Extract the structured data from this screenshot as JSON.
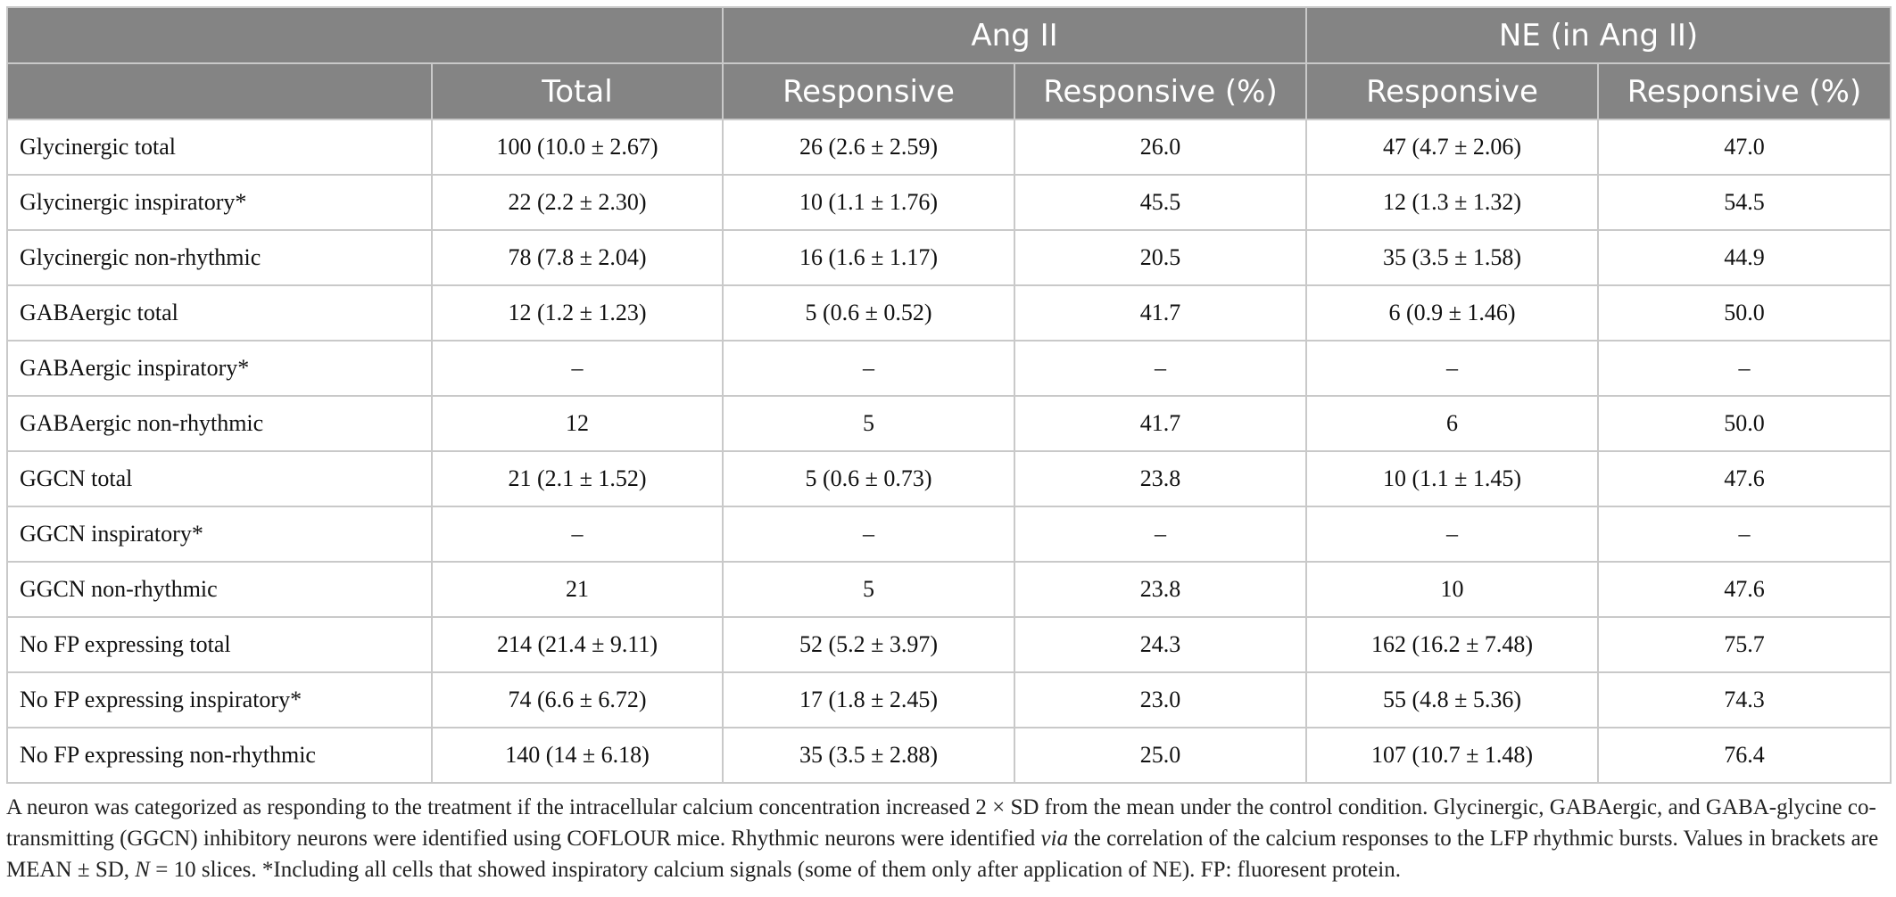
{
  "table": {
    "group_headers": [
      "",
      "Ang II",
      "NE (in Ang II)"
    ],
    "column_headers": [
      "",
      "Total",
      "Responsive",
      "Responsive (%)",
      "Responsive",
      "Responsive (%)"
    ],
    "rows": [
      [
        "Glycinergic total",
        "100 (10.0 ± 2.67)",
        "26 (2.6 ± 2.59)",
        "26.0",
        "47 (4.7 ± 2.06)",
        "47.0"
      ],
      [
        "Glycinergic inspiratory*",
        "22 (2.2 ± 2.30)",
        "10 (1.1 ± 1.76)",
        "45.5",
        "12 (1.3 ± 1.32)",
        "54.5"
      ],
      [
        "Glycinergic non-rhythmic",
        "78 (7.8 ± 2.04)",
        "16 (1.6 ± 1.17)",
        "20.5",
        "35 (3.5 ± 1.58)",
        "44.9"
      ],
      [
        "GABAergic total",
        "12 (1.2 ± 1.23)",
        "5 (0.6 ± 0.52)",
        "41.7",
        "6 (0.9 ± 1.46)",
        "50.0"
      ],
      [
        "GABAergic inspiratory*",
        "–",
        "–",
        "–",
        "–",
        "–"
      ],
      [
        "GABAergic non-rhythmic",
        "12",
        "5",
        "41.7",
        "6",
        "50.0"
      ],
      [
        "GGCN total",
        "21 (2.1 ± 1.52)",
        "5 (0.6 ± 0.73)",
        "23.8",
        "10 (1.1 ± 1.45)",
        "47.6"
      ],
      [
        "GGCN inspiratory*",
        "–",
        "–",
        "–",
        "–",
        "–"
      ],
      [
        "GGCN non-rhythmic",
        "21",
        "5",
        "23.8",
        "10",
        "47.6"
      ],
      [
        "No FP expressing total",
        "214 (21.4 ± 9.11)",
        "52 (5.2 ± 3.97)",
        "24.3",
        "162 (16.2 ± 7.48)",
        "75.7"
      ],
      [
        "No FP expressing inspiratory*",
        "74 (6.6 ± 6.72)",
        "17 (1.8 ± 2.45)",
        "23.0",
        "55 (4.8 ± 5.36)",
        "74.3"
      ],
      [
        "No FP expressing non-rhythmic",
        "140 (14 ± 6.18)",
        "35 (3.5 ± 2.88)",
        "25.0",
        "107 (10.7 ± 1.48)",
        "76.4"
      ]
    ]
  },
  "footnote": {
    "part1": "A neuron was categorized as responding to the treatment if the intracellular calcium concentration increased 2 × SD from the mean under the control condition. Glycinergic, GABAergic, and GABA-glycine co-transmitting (GGCN) inhibitory neurons were identified using COFLOUR mice. Rhythmic neurons were identified ",
    "via": "via",
    "part2": " the correlation of the calcium responses to the LFP rhythmic bursts. Values in brackets are MEAN ± SD, ",
    "n_symbol": "N",
    "part3": " = 10 slices. *Including all cells that showed inspiratory calcium signals (some of them only after application of NE). FP: fluoresent protein."
  }
}
